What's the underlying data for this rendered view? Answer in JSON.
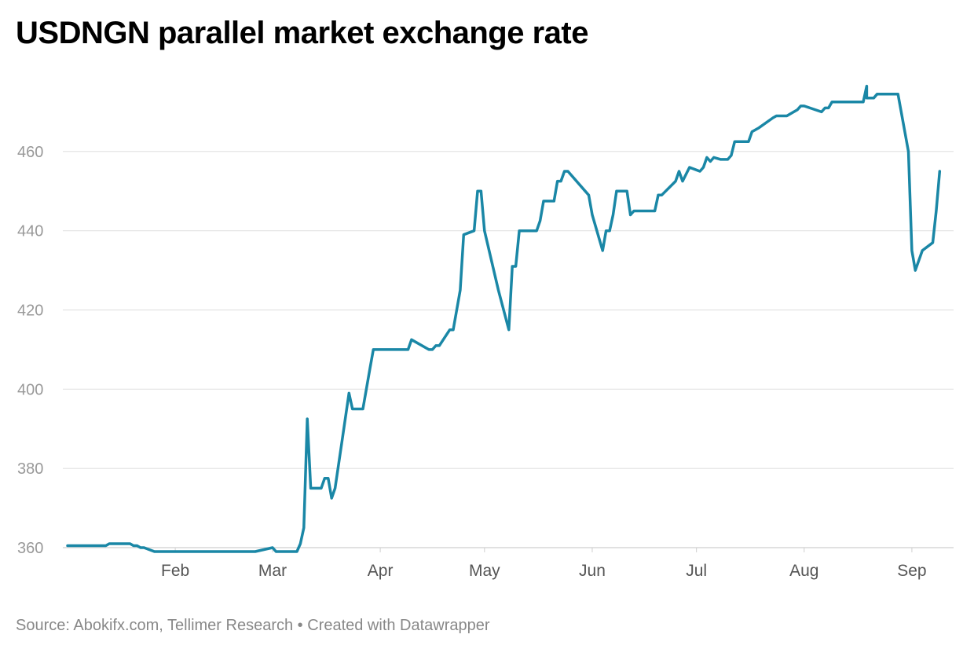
{
  "title": "USDNGN parallel market exchange rate",
  "source": "Source: Abokifx.com, Tellimer Research • Created with Datawrapper",
  "colors": {
    "line": "#1a87a6",
    "grid": "#e2e2e2",
    "axis": "#999999"
  },
  "chart_data": {
    "type": "line",
    "title": "USDNGN parallel market exchange rate",
    "ylim": [
      360,
      480
    ],
    "yticks": [
      360,
      380,
      400,
      420,
      440,
      460
    ],
    "x_axis": {
      "range": [
        "2023-01-01",
        "2023-09-13"
      ],
      "ticks": [
        {
          "label": "Feb",
          "date": "2023-02-01"
        },
        {
          "label": "Mar",
          "date": "2023-03-01"
        },
        {
          "label": "Apr",
          "date": "2023-04-01"
        },
        {
          "label": "May",
          "date": "2023-05-01"
        },
        {
          "label": "Jun",
          "date": "2023-06-01"
        },
        {
          "label": "Jul",
          "date": "2023-07-01"
        },
        {
          "label": "Aug",
          "date": "2023-08-01"
        },
        {
          "label": "Sep",
          "date": "2023-09-01"
        }
      ]
    },
    "grid": true,
    "series": [
      {
        "name": "",
        "points": [
          [
            "2023-01-01",
            360.5
          ],
          [
            "2023-01-12",
            360.5
          ],
          [
            "2023-01-13",
            361
          ],
          [
            "2023-01-19",
            361
          ],
          [
            "2023-01-20",
            360.5
          ],
          [
            "2023-01-21",
            360.5
          ],
          [
            "2023-01-22",
            360
          ],
          [
            "2023-01-23",
            360
          ],
          [
            "2023-01-26",
            359
          ],
          [
            "2023-02-04",
            359
          ],
          [
            "2023-02-14",
            359
          ],
          [
            "2023-02-24",
            359
          ],
          [
            "2023-03-01",
            360
          ],
          [
            "2023-03-02",
            359
          ],
          [
            "2023-03-08",
            359
          ],
          [
            "2023-03-09",
            361
          ],
          [
            "2023-03-10",
            365
          ],
          [
            "2023-03-11",
            392.5
          ],
          [
            "2023-03-12",
            375
          ],
          [
            "2023-03-15",
            375
          ],
          [
            "2023-03-16",
            377.5
          ],
          [
            "2023-03-17",
            377.5
          ],
          [
            "2023-03-18",
            372.5
          ],
          [
            "2023-03-19",
            375
          ],
          [
            "2023-03-21",
            387
          ],
          [
            "2023-03-23",
            399
          ],
          [
            "2023-03-24",
            395
          ],
          [
            "2023-03-27",
            395
          ],
          [
            "2023-03-29",
            405
          ],
          [
            "2023-03-30",
            410
          ],
          [
            "2023-04-01",
            410
          ],
          [
            "2023-04-09",
            410
          ],
          [
            "2023-04-10",
            412.5
          ],
          [
            "2023-04-15",
            410
          ],
          [
            "2023-04-16",
            410
          ],
          [
            "2023-04-17",
            411
          ],
          [
            "2023-04-18",
            411
          ],
          [
            "2023-04-21",
            415
          ],
          [
            "2023-04-22",
            415
          ],
          [
            "2023-04-24",
            425
          ],
          [
            "2023-04-25",
            439
          ],
          [
            "2023-04-28",
            440
          ],
          [
            "2023-04-29",
            450
          ],
          [
            "2023-04-30",
            450
          ],
          [
            "2023-05-01",
            440
          ],
          [
            "2023-05-05",
            425
          ],
          [
            "2023-05-08",
            415
          ],
          [
            "2023-05-09",
            431
          ],
          [
            "2023-05-10",
            431
          ],
          [
            "2023-05-11",
            440
          ],
          [
            "2023-05-16",
            440
          ],
          [
            "2023-05-17",
            442.5
          ],
          [
            "2023-05-18",
            447.5
          ],
          [
            "2023-05-21",
            447.5
          ],
          [
            "2023-05-22",
            452.5
          ],
          [
            "2023-05-23",
            452.5
          ],
          [
            "2023-05-24",
            455
          ],
          [
            "2023-05-25",
            455
          ],
          [
            "2023-05-30",
            450
          ],
          [
            "2023-05-31",
            449
          ],
          [
            "2023-06-01",
            444
          ],
          [
            "2023-06-04",
            435
          ],
          [
            "2023-06-05",
            440
          ],
          [
            "2023-06-06",
            440
          ],
          [
            "2023-06-07",
            444
          ],
          [
            "2023-06-08",
            450
          ],
          [
            "2023-06-11",
            450
          ],
          [
            "2023-06-12",
            444
          ],
          [
            "2023-06-13",
            445
          ],
          [
            "2023-06-19",
            445
          ],
          [
            "2023-06-20",
            449
          ],
          [
            "2023-06-21",
            449
          ],
          [
            "2023-06-25",
            452.5
          ],
          [
            "2023-06-26",
            455
          ],
          [
            "2023-06-27",
            452.5
          ],
          [
            "2023-06-29",
            456
          ],
          [
            "2023-07-02",
            455
          ],
          [
            "2023-07-03",
            456
          ],
          [
            "2023-07-04",
            458.5
          ],
          [
            "2023-07-05",
            457.5
          ],
          [
            "2023-07-06",
            458.5
          ],
          [
            "2023-07-08",
            458
          ],
          [
            "2023-07-10",
            458
          ],
          [
            "2023-07-11",
            459
          ],
          [
            "2023-07-12",
            462.5
          ],
          [
            "2023-07-16",
            462.5
          ],
          [
            "2023-07-17",
            465
          ],
          [
            "2023-07-19",
            466
          ],
          [
            "2023-07-23",
            468.5
          ],
          [
            "2023-07-24",
            469
          ],
          [
            "2023-07-27",
            469
          ],
          [
            "2023-07-29",
            470
          ],
          [
            "2023-07-30",
            470.5
          ],
          [
            "2023-07-31",
            471.5
          ],
          [
            "2023-08-01",
            471.5
          ],
          [
            "2023-08-06",
            470
          ],
          [
            "2023-08-07",
            471
          ],
          [
            "2023-08-08",
            471
          ],
          [
            "2023-08-09",
            472.5
          ],
          [
            "2023-08-18",
            472.5
          ],
          [
            "2023-08-19",
            476.5
          ],
          [
            "2023-08-19",
            473.5
          ],
          [
            "2023-08-21",
            473.5
          ],
          [
            "2023-08-22",
            474.5
          ],
          [
            "2023-08-28",
            474.5
          ],
          [
            "2023-08-31",
            460
          ],
          [
            "2023-09-01",
            435
          ],
          [
            "2023-09-02",
            430
          ],
          [
            "2023-09-04",
            435
          ],
          [
            "2023-09-07",
            437
          ],
          [
            "2023-09-08",
            445
          ],
          [
            "2023-09-09",
            455
          ]
        ]
      }
    ]
  }
}
